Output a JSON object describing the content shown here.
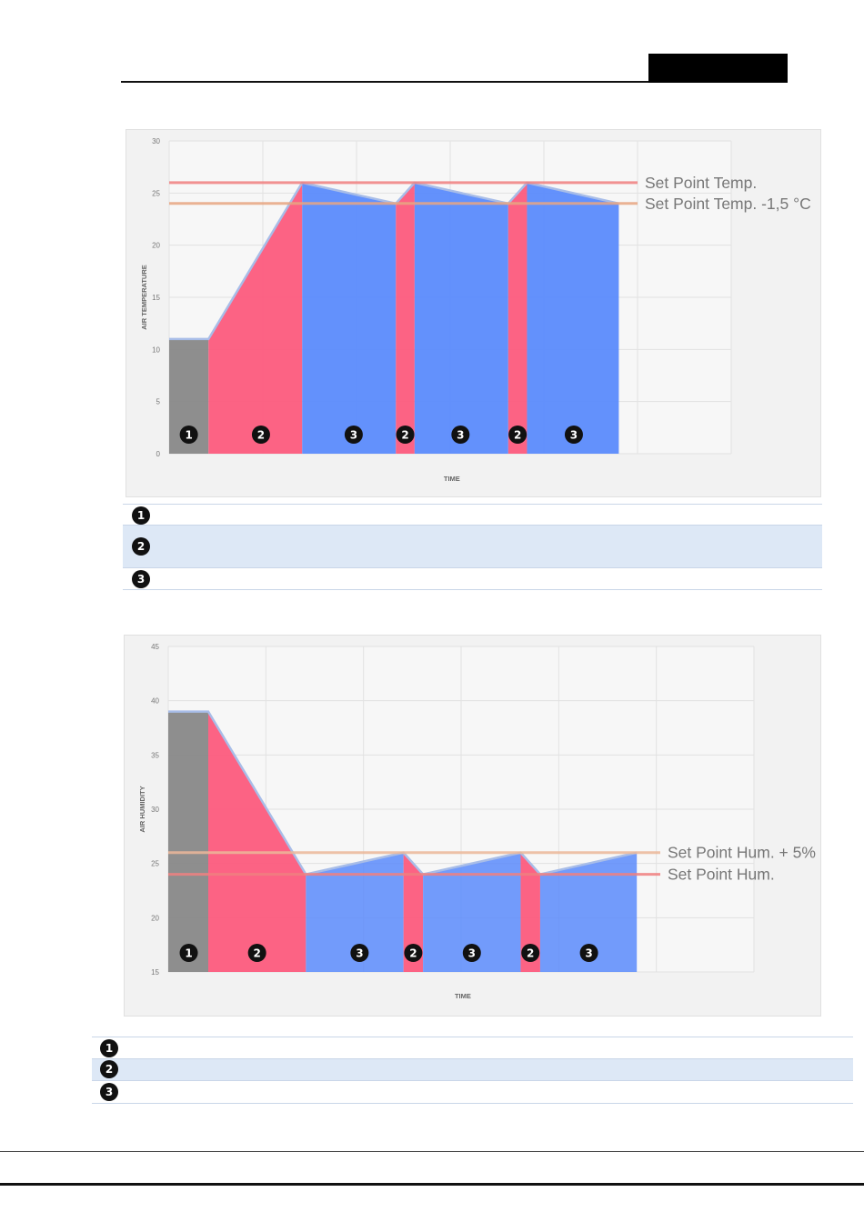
{
  "chart_data": [
    {
      "type": "area",
      "ylabel": "AIR TEMPERATURE",
      "xlabel": "TIME",
      "ylim": [
        0,
        30
      ],
      "y_ticks": [
        0,
        5,
        10,
        15,
        20,
        25,
        30
      ],
      "x_range": [
        0,
        6
      ],
      "grid": true,
      "segments": [
        {
          "phase": "1",
          "points": [
            [
              0,
              11
            ],
            [
              0.42,
              11
            ]
          ]
        },
        {
          "phase": "2",
          "points": [
            [
              0.42,
              11
            ],
            [
              1.42,
              26
            ]
          ]
        },
        {
          "phase": "3",
          "points": [
            [
              1.42,
              26
            ],
            [
              2.42,
              24
            ]
          ]
        },
        {
          "phase": "2",
          "points": [
            [
              2.42,
              24
            ],
            [
              2.62,
              26
            ]
          ]
        },
        {
          "phase": "3",
          "points": [
            [
              2.62,
              26
            ],
            [
              3.62,
              24
            ]
          ]
        },
        {
          "phase": "2",
          "points": [
            [
              3.62,
              24
            ],
            [
              3.82,
              26
            ]
          ]
        },
        {
          "phase": "3",
          "points": [
            [
              3.82,
              26
            ],
            [
              4.8,
              24
            ]
          ]
        }
      ],
      "reference_lines": [
        {
          "value": 26,
          "label": "Set Point Temp.",
          "color": "#f08080"
        },
        {
          "value": 24,
          "label": "Set Point Temp. -1,5 °C",
          "color": "#e8a682"
        }
      ],
      "markers": [
        {
          "num": "1",
          "x": 0.21
        },
        {
          "num": "2",
          "x": 0.98
        },
        {
          "num": "3",
          "x": 1.97
        },
        {
          "num": "2",
          "x": 2.52
        },
        {
          "num": "3",
          "x": 3.11
        },
        {
          "num": "2",
          "x": 3.72
        },
        {
          "num": "3",
          "x": 4.32
        }
      ]
    },
    {
      "type": "area",
      "ylabel": "AIR HUMIDITY",
      "xlabel": "TIME",
      "ylim": [
        15,
        45
      ],
      "y_ticks": [
        15,
        20,
        25,
        30,
        35,
        40,
        45
      ],
      "x_range": [
        0,
        6
      ],
      "grid": true,
      "segments": [
        {
          "phase": "1",
          "points": [
            [
              0,
              39
            ],
            [
              0.41,
              39
            ]
          ]
        },
        {
          "phase": "2",
          "points": [
            [
              0.41,
              39
            ],
            [
              1.41,
              24
            ]
          ]
        },
        {
          "phase": "3",
          "points": [
            [
              1.41,
              24
            ],
            [
              2.41,
              26
            ]
          ]
        },
        {
          "phase": "2",
          "points": [
            [
              2.41,
              26
            ],
            [
              2.61,
              24
            ]
          ]
        },
        {
          "phase": "3",
          "points": [
            [
              2.61,
              24
            ],
            [
              3.61,
              26
            ]
          ]
        },
        {
          "phase": "2",
          "points": [
            [
              3.61,
              26
            ],
            [
              3.81,
              24
            ]
          ]
        },
        {
          "phase": "3",
          "points": [
            [
              3.81,
              24
            ],
            [
              4.8,
              26
            ]
          ]
        }
      ],
      "reference_lines": [
        {
          "value": 26,
          "label": "Set Point Hum. + 5%",
          "color": "#ecb89a"
        },
        {
          "value": 24,
          "label": "Set Point Hum.",
          "color": "#f08080"
        }
      ],
      "markers": [
        {
          "num": "1",
          "x": 0.21
        },
        {
          "num": "2",
          "x": 0.91
        },
        {
          "num": "3",
          "x": 1.96
        },
        {
          "num": "2",
          "x": 2.51
        },
        {
          "num": "3",
          "x": 3.11
        },
        {
          "num": "2",
          "x": 3.71
        },
        {
          "num": "3",
          "x": 4.31
        }
      ]
    }
  ],
  "phase_colors": {
    "1": "#888888",
    "2": "#fc5b7d",
    "3": "#5b8bfc"
  },
  "legend_top": [
    {
      "num": "1"
    },
    {
      "num": "2"
    },
    {
      "num": "3"
    }
  ],
  "legend_bottom": [
    {
      "num": "1"
    },
    {
      "num": "2"
    },
    {
      "num": "3"
    }
  ]
}
